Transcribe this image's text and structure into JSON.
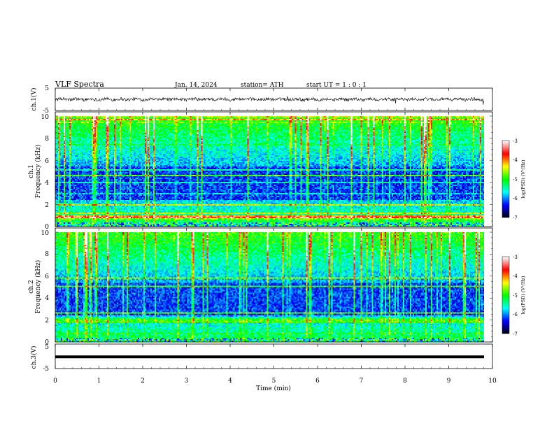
{
  "header": {
    "title": "VLF  Spectra",
    "date": "Jan. 14, 2024",
    "station": "station= ATH",
    "start_ut": "start  UT  =    1  : 0   : 1"
  },
  "colors": {
    "background": "#ffffff",
    "axis": "#000000",
    "spectrogram_cmap": [
      "#000000",
      "#0000ff",
      "#00ffff",
      "#00ff00",
      "#ffff00",
      "#ff0000",
      "#ffffff"
    ]
  },
  "chart_data": [
    {
      "type": "line",
      "name": "ch1-waveform",
      "ylabel": "ch.1(V)",
      "ylim": [
        -5,
        5
      ],
      "yticks": [
        "5",
        "-5"
      ],
      "xlim": [
        0,
        10
      ],
      "description_values": {
        "mean": 0,
        "noise_amplitude": 1
      }
    },
    {
      "type": "heatmap",
      "name": "ch1-spectrogram",
      "ylabel": "ch.1\nFrequency  (kHz)",
      "ylabel_lines": [
        "ch.1",
        "Frequency  (kHz)"
      ],
      "ylim": [
        0,
        10
      ],
      "yticks": [
        "0",
        "2",
        "4",
        "6",
        "8",
        "10"
      ],
      "xlim": [
        0,
        9.8
      ],
      "colorbar": {
        "label": "log(PSD) (V²/Hz)",
        "range": [
          -7,
          -3
        ],
        "ticks": [
          "-3",
          "-4",
          "-5",
          "-6",
          "-7"
        ]
      }
    },
    {
      "type": "heatmap",
      "name": "ch2-spectrogram",
      "ylabel": "ch.2\nFrequency  (kHz)",
      "ylabel_lines": [
        "ch.2",
        "Frequency  (kHz)"
      ],
      "ylim": [
        0,
        10
      ],
      "yticks": [
        "0",
        "2",
        "4",
        "6",
        "8",
        "10"
      ],
      "xlim": [
        0,
        9.8
      ],
      "colorbar": {
        "label": "log(PSD) (V²/Hz)",
        "range": [
          -7,
          -3
        ],
        "ticks": [
          "-3",
          "-4",
          "-5",
          "-6",
          "-7"
        ]
      }
    },
    {
      "type": "line",
      "name": "ch3-waveform",
      "ylabel": "ch.3(V)",
      "ylim": [
        -5,
        5
      ],
      "yticks": [
        "5",
        "-5"
      ],
      "xlim": [
        0,
        10
      ],
      "xlabel": "Time  (min)",
      "xticks": [
        "0",
        "1",
        "2",
        "3",
        "4",
        "5",
        "6",
        "7",
        "8",
        "9",
        "10"
      ],
      "description_values": {
        "level": -0.2
      }
    }
  ]
}
